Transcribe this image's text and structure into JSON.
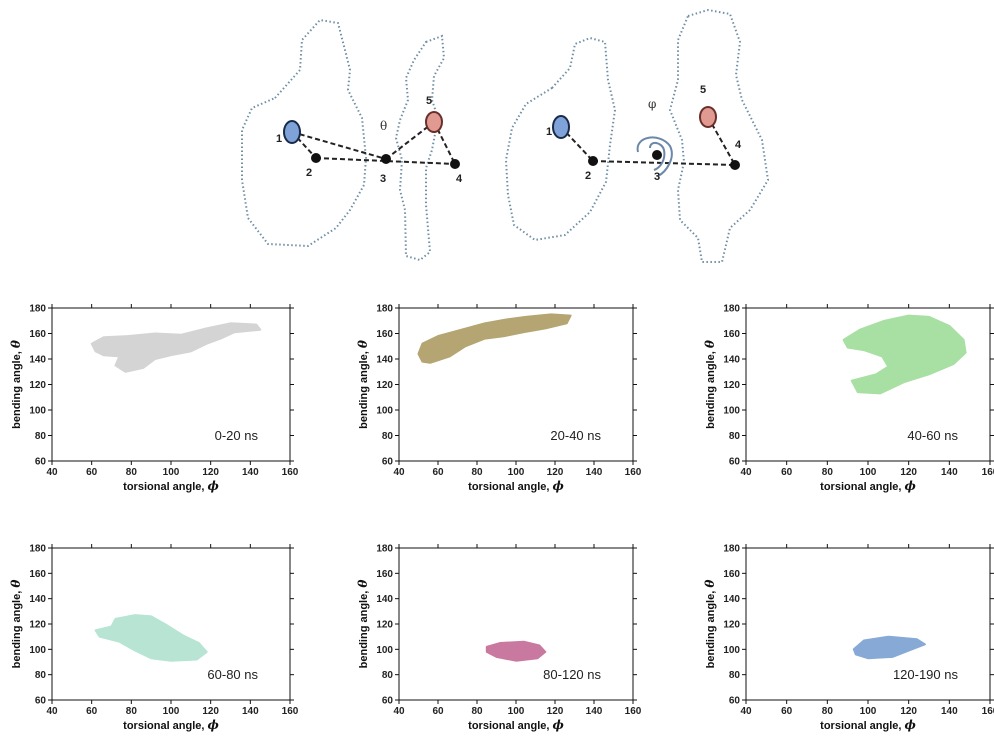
{
  "diagram": {
    "left_labels": [
      "1",
      "2",
      "3",
      "4",
      "5"
    ],
    "right_labels": [
      "1",
      "2",
      "3",
      "4",
      "5"
    ],
    "theta_symbol": "θ",
    "phi_symbol": "φ",
    "colors": {
      "site1": "#7fa3d8",
      "site5": "#e09a92"
    }
  },
  "chart_data": [
    {
      "type": "scatter",
      "label": "0-20 ns",
      "color": "#d4d4d4",
      "xlabel": "torsional angle,",
      "xsym": "ϕ",
      "ylabel": "bending angle,",
      "ysym": "θ",
      "xlim": [
        40,
        160
      ],
      "ylim": [
        60,
        180
      ],
      "xticks": [
        40,
        60,
        80,
        100,
        120,
        140,
        160
      ],
      "yticks": [
        60,
        80,
        100,
        120,
        140,
        160,
        180
      ],
      "region": [
        [
          60,
          152
        ],
        [
          66,
          157
        ],
        [
          78,
          158
        ],
        [
          92,
          160
        ],
        [
          105,
          159
        ],
        [
          118,
          164
        ],
        [
          130,
          168
        ],
        [
          143,
          167
        ],
        [
          145,
          163
        ],
        [
          132,
          161
        ],
        [
          125,
          156
        ],
        [
          118,
          152
        ],
        [
          110,
          146
        ],
        [
          100,
          143
        ],
        [
          92,
          140
        ],
        [
          86,
          133
        ],
        [
          77,
          130
        ],
        [
          72,
          135
        ],
        [
          74,
          142
        ],
        [
          66,
          143
        ],
        [
          62,
          146
        ]
      ]
    },
    {
      "type": "scatter",
      "label": "20-40 ns",
      "color": "#b5a572",
      "xlabel": "torsional angle,",
      "xsym": "ϕ",
      "ylabel": "bending angle,",
      "ysym": "θ",
      "xlim": [
        40,
        160
      ],
      "ylim": [
        60,
        180
      ],
      "xticks": [
        40,
        60,
        80,
        100,
        120,
        140,
        160
      ],
      "yticks": [
        60,
        80,
        100,
        120,
        140,
        160,
        180
      ],
      "region": [
        [
          50,
          144
        ],
        [
          52,
          152
        ],
        [
          60,
          158
        ],
        [
          72,
          163
        ],
        [
          84,
          168
        ],
        [
          95,
          171
        ],
        [
          105,
          173
        ],
        [
          118,
          175
        ],
        [
          128,
          174
        ],
        [
          126,
          168
        ],
        [
          115,
          164
        ],
        [
          104,
          161
        ],
        [
          94,
          158
        ],
        [
          84,
          156
        ],
        [
          74,
          150
        ],
        [
          66,
          142
        ],
        [
          56,
          137
        ],
        [
          52,
          138
        ]
      ]
    },
    {
      "type": "scatter",
      "label": "40-60 ns",
      "color": "#a8dfa2",
      "xlabel": "torsional angle,",
      "xsym": "ϕ",
      "ylabel": "bending angle,",
      "ysym": "θ",
      "xlim": [
        40,
        160
      ],
      "ylim": [
        60,
        180
      ],
      "xticks": [
        40,
        60,
        80,
        100,
        120,
        140,
        160
      ],
      "yticks": [
        60,
        80,
        100,
        120,
        140,
        160,
        180
      ],
      "region": [
        [
          88,
          155
        ],
        [
          96,
          163
        ],
        [
          108,
          170
        ],
        [
          120,
          174
        ],
        [
          130,
          173
        ],
        [
          140,
          166
        ],
        [
          147,
          155
        ],
        [
          148,
          145
        ],
        [
          142,
          136
        ],
        [
          130,
          128
        ],
        [
          118,
          122
        ],
        [
          106,
          113
        ],
        [
          95,
          114
        ],
        [
          92,
          123
        ],
        [
          104,
          128
        ],
        [
          110,
          134
        ],
        [
          107,
          142
        ],
        [
          98,
          147
        ],
        [
          90,
          149
        ]
      ]
    },
    {
      "type": "scatter",
      "label": "60-80 ns",
      "color": "#b7e4d3",
      "xlabel": "torsional angle,",
      "xsym": "ϕ",
      "ylabel": "bending angle,",
      "ysym": "θ",
      "xlim": [
        40,
        160
      ],
      "ylim": [
        60,
        180
      ],
      "xticks": [
        40,
        60,
        80,
        100,
        120,
        140,
        160
      ],
      "yticks": [
        60,
        80,
        100,
        120,
        140,
        160,
        180
      ],
      "region": [
        [
          62,
          115
        ],
        [
          70,
          118
        ],
        [
          72,
          124
        ],
        [
          82,
          127
        ],
        [
          90,
          126
        ],
        [
          98,
          119
        ],
        [
          106,
          111
        ],
        [
          114,
          105
        ],
        [
          118,
          98
        ],
        [
          113,
          92
        ],
        [
          100,
          91
        ],
        [
          90,
          93
        ],
        [
          82,
          99
        ],
        [
          74,
          106
        ],
        [
          64,
          110
        ]
      ]
    },
    {
      "type": "scatter",
      "label": "80-120 ns",
      "color": "#c9799f",
      "xlabel": "torsional angle,",
      "xsym": "ϕ",
      "ylabel": "bending angle,",
      "ysym": "θ",
      "xlim": [
        40,
        160
      ],
      "ylim": [
        60,
        180
      ],
      "xticks": [
        40,
        60,
        80,
        100,
        120,
        140,
        160
      ],
      "yticks": [
        60,
        80,
        100,
        120,
        140,
        160,
        180
      ],
      "region": [
        [
          85,
          102
        ],
        [
          92,
          105
        ],
        [
          104,
          106
        ],
        [
          112,
          103
        ],
        [
          115,
          98
        ],
        [
          111,
          93
        ],
        [
          100,
          91
        ],
        [
          90,
          94
        ],
        [
          85,
          98
        ]
      ]
    },
    {
      "type": "scatter",
      "label": "120-190 ns",
      "color": "#86a9d6",
      "xlabel": "torsional angle,",
      "xsym": "ϕ",
      "ylabel": "bending angle,",
      "ysym": "θ",
      "xlim": [
        40,
        160
      ],
      "ylim": [
        60,
        180
      ],
      "xticks": [
        40,
        60,
        80,
        100,
        120,
        140,
        160
      ],
      "yticks": [
        60,
        80,
        100,
        120,
        140,
        160,
        180
      ],
      "region": [
        [
          93,
          100
        ],
        [
          98,
          107
        ],
        [
          110,
          110
        ],
        [
          124,
          108
        ],
        [
          128,
          104
        ],
        [
          120,
          99
        ],
        [
          112,
          94
        ],
        [
          100,
          93
        ],
        [
          94,
          96
        ]
      ]
    }
  ]
}
